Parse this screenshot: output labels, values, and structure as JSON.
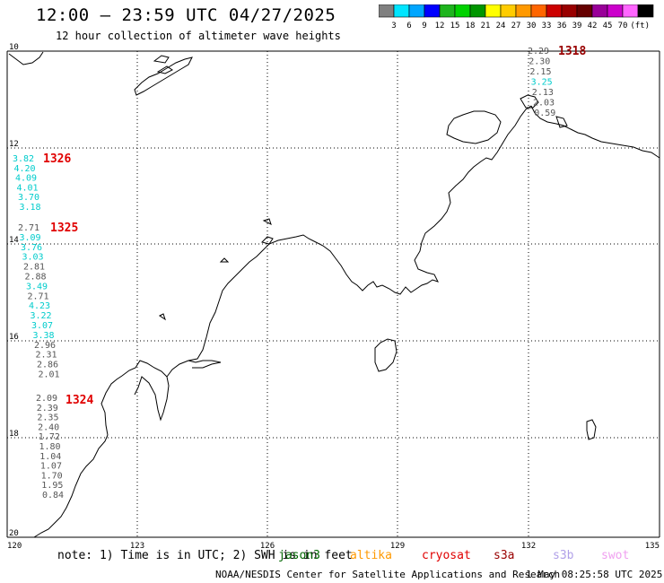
{
  "title": "12:00 – 23:59 UTC 04/27/2025",
  "subtitle": "12 hour collection of altimeter wave heights",
  "colorbar": {
    "unit": "(ft)",
    "ticks": [
      "3",
      "6",
      "9",
      "12",
      "15",
      "18",
      "21",
      "24",
      "27",
      "30",
      "33",
      "36",
      "39",
      "42",
      "45",
      "70"
    ],
    "colors": [
      "#808080",
      "#00e5ff",
      "#00a6ff",
      "#0000ff",
      "#1eb41e",
      "#00d200",
      "#009600",
      "#ffff00",
      "#ffcc00",
      "#ff9900",
      "#ff6600",
      "#cc0000",
      "#990000",
      "#660000",
      "#990099",
      "#cc00cc",
      "#ff66ff",
      "#000000"
    ]
  },
  "map": {
    "lat_ticks": [
      "10",
      "12",
      "14",
      "16",
      "18",
      "20"
    ],
    "lon_ticks": [
      "120",
      "123",
      "126",
      "129",
      "132",
      "135"
    ]
  },
  "tracks": [
    {
      "id": "1326",
      "label": "1326",
      "label_color": "#e00000",
      "points": [
        {
          "v": "3.82",
          "c": "#00cccc"
        },
        {
          "v": "4.20",
          "c": "#00cccc"
        },
        {
          "v": "4.09",
          "c": "#00cccc"
        },
        {
          "v": "4.01",
          "c": "#00cccc"
        },
        {
          "v": "3.70",
          "c": "#00cccc"
        },
        {
          "v": "3.18",
          "c": "#00cccc"
        }
      ]
    },
    {
      "id": "1325",
      "label": "1325",
      "label_color": "#e00000",
      "points": [
        {
          "v": "2.71",
          "c": "#555555"
        },
        {
          "v": "3.09",
          "c": "#00cccc"
        },
        {
          "v": "3.76",
          "c": "#00cccc"
        },
        {
          "v": "3.03",
          "c": "#00cccc"
        },
        {
          "v": "2.81",
          "c": "#555555"
        },
        {
          "v": "2.88",
          "c": "#555555"
        },
        {
          "v": "3.49",
          "c": "#00cccc"
        },
        {
          "v": "2.71",
          "c": "#555555"
        },
        {
          "v": "4.23",
          "c": "#00cccc"
        },
        {
          "v": "3.22",
          "c": "#00cccc"
        },
        {
          "v": "3.07",
          "c": "#00cccc"
        },
        {
          "v": "3.38",
          "c": "#00cccc"
        },
        {
          "v": "2.96",
          "c": "#555555"
        },
        {
          "v": "2.31",
          "c": "#555555"
        },
        {
          "v": "2.86",
          "c": "#555555"
        },
        {
          "v": "2.01",
          "c": "#555555"
        }
      ]
    },
    {
      "id": "1324",
      "label": "1324",
      "label_color": "#e00000",
      "points": [
        {
          "v": "2.09",
          "c": "#555555"
        },
        {
          "v": "2.39",
          "c": "#555555"
        },
        {
          "v": "2.35",
          "c": "#555555"
        },
        {
          "v": "2.40",
          "c": "#555555"
        },
        {
          "v": "1.72",
          "c": "#555555"
        },
        {
          "v": "1.80",
          "c": "#555555"
        },
        {
          "v": "1.04",
          "c": "#555555"
        },
        {
          "v": "1.07",
          "c": "#555555"
        },
        {
          "v": "1.70",
          "c": "#555555"
        },
        {
          "v": "1.95",
          "c": "#555555"
        },
        {
          "v": "0.84",
          "c": "#555555"
        }
      ]
    },
    {
      "id": "1318",
      "label": "1318",
      "label_color": "#990000",
      "points": [
        {
          "v": "2.29",
          "c": "#555555"
        },
        {
          "v": "2.30",
          "c": "#555555"
        },
        {
          "v": "2.15",
          "c": "#555555"
        },
        {
          "v": "3.25",
          "c": "#00cccc"
        },
        {
          "v": "2.13",
          "c": "#555555"
        },
        {
          "v": "2.03",
          "c": "#555555"
        },
        {
          "v": "0.59",
          "c": "#555555"
        }
      ]
    }
  ],
  "footer": {
    "note": "note:  1) Time is in UTC;  2) SWH is in feet",
    "satellites": [
      {
        "name": "jason3",
        "color": "#006600"
      },
      {
        "name": "altika",
        "color": "#ff9900"
      },
      {
        "name": "cryosat",
        "color": "#e00000"
      },
      {
        "name": "s3a",
        "color": "#990000"
      },
      {
        "name": "s3b",
        "color": "#b0a0e8"
      },
      {
        "name": "swot",
        "color": "#f0a0f0"
      }
    ],
    "credit": "NOAA/NESDIS Center for Satellite Applications and Research",
    "timestamp": "1 May 08:25:58 UTC 2025"
  }
}
